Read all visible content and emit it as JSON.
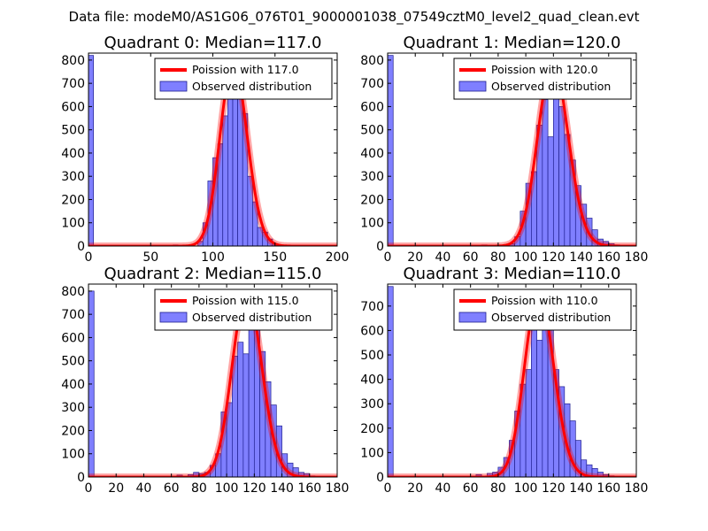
{
  "figure": {
    "suptitle": "Data file: modeM0/AS1G06_076T01_9000001038_07549cztM0_level2_quad_clean.evt"
  },
  "colors": {
    "hist_fill": "#7f7fff",
    "hist_edge": "#1f1f8f",
    "poisson_line": "#ff0000",
    "legend_border": "#000000"
  },
  "chart_data": [
    {
      "type": "bar",
      "title": "Quadrant 0: Median=117.0",
      "xlim": [
        0,
        200
      ],
      "ylim": [
        0,
        830
      ],
      "xticks": [
        0,
        50,
        100,
        150,
        200
      ],
      "yticks": [
        0,
        100,
        200,
        300,
        400,
        500,
        600,
        700,
        800
      ],
      "bin_width": 4,
      "bins_x": [
        0,
        68,
        72,
        88,
        92,
        96,
        100,
        104,
        108,
        112,
        116,
        120,
        124,
        128,
        132,
        136,
        140,
        144,
        148,
        152,
        156
      ],
      "bins_y": [
        820,
        5,
        3,
        20,
        100,
        280,
        380,
        440,
        560,
        700,
        780,
        720,
        570,
        300,
        190,
        80,
        60,
        30,
        10,
        5,
        2
      ],
      "poisson_mean": 117.0,
      "poisson_scale": 790,
      "legend": [
        "Poission with 117.0",
        "Observed distribution"
      ]
    },
    {
      "type": "bar",
      "title": "Quadrant 1: Median=120.0",
      "xlim": [
        0,
        180
      ],
      "ylim": [
        0,
        830
      ],
      "xticks": [
        0,
        20,
        40,
        60,
        80,
        100,
        120,
        140,
        160,
        180
      ],
      "yticks": [
        0,
        100,
        200,
        300,
        400,
        500,
        600,
        700,
        800
      ],
      "bin_width": 4,
      "bins_x": [
        0,
        68,
        84,
        88,
        92,
        96,
        100,
        104,
        108,
        112,
        116,
        120,
        124,
        128,
        132,
        136,
        140,
        144,
        148,
        152,
        156,
        160,
        164
      ],
      "bins_y": [
        820,
        5,
        5,
        10,
        40,
        150,
        270,
        320,
        520,
        630,
        470,
        780,
        600,
        480,
        370,
        260,
        180,
        120,
        70,
        30,
        20,
        10,
        5
      ],
      "poisson_mean": 120.0,
      "poisson_scale": 790,
      "legend": [
        "Poission with 120.0",
        "Observed distribution"
      ]
    },
    {
      "type": "bar",
      "title": "Quadrant 2: Median=115.0",
      "xlim": [
        0,
        180
      ],
      "ylim": [
        0,
        830
      ],
      "xticks": [
        0,
        20,
        40,
        60,
        80,
        100,
        120,
        140,
        160,
        180
      ],
      "yticks": [
        0,
        100,
        200,
        300,
        400,
        500,
        600,
        700,
        800
      ],
      "bin_width": 4,
      "bins_x": [
        0,
        64,
        72,
        76,
        80,
        84,
        88,
        92,
        96,
        100,
        104,
        108,
        112,
        116,
        120,
        124,
        128,
        132,
        136,
        140,
        144,
        148,
        152,
        156,
        160
      ],
      "bins_y": [
        800,
        8,
        10,
        20,
        15,
        20,
        50,
        100,
        280,
        320,
        520,
        580,
        530,
        780,
        640,
        540,
        410,
        310,
        220,
        100,
        60,
        40,
        20,
        15,
        5
      ],
      "poisson_mean": 115.0,
      "poisson_scale": 790,
      "legend": [
        "Poission with 115.0",
        "Observed distribution"
      ]
    },
    {
      "type": "bar",
      "title": "Quadrant 3: Median=110.0",
      "xlim": [
        0,
        180
      ],
      "ylim": [
        0,
        790
      ],
      "xticks": [
        0,
        20,
        40,
        60,
        80,
        100,
        120,
        140,
        160,
        180
      ],
      "yticks": [
        0,
        100,
        200,
        300,
        400,
        500,
        600,
        700
      ],
      "bin_width": 4,
      "bins_x": [
        0,
        64,
        72,
        76,
        80,
        84,
        88,
        92,
        96,
        100,
        104,
        108,
        112,
        116,
        120,
        124,
        128,
        132,
        136,
        140,
        144,
        148,
        152,
        156,
        160
      ],
      "bins_y": [
        780,
        10,
        15,
        20,
        40,
        80,
        150,
        270,
        380,
        440,
        610,
        560,
        750,
        620,
        440,
        370,
        300,
        230,
        150,
        70,
        50,
        35,
        20,
        10,
        5
      ],
      "poisson_mean": 110.0,
      "poisson_scale": 755,
      "legend": [
        "Poission with 110.0",
        "Observed distribution"
      ]
    }
  ]
}
